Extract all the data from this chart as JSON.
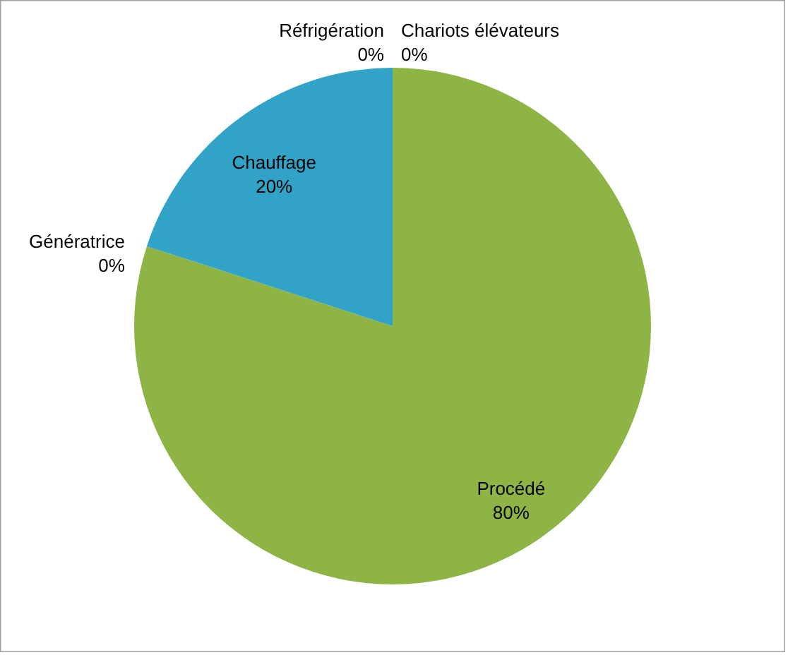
{
  "chart_data": {
    "type": "pie",
    "categories": [
      "Chariots élévateurs",
      "Procédé",
      "Génératrice",
      "Chauffage",
      "Réfrigération"
    ],
    "values": [
      0,
      80,
      0,
      20,
      0
    ],
    "colors": [
      "#e46c0a",
      "#8fb446",
      "#7f64a2",
      "#31a3c6",
      "#c0504d"
    ],
    "value_labels": [
      "0%",
      "80%",
      "0%",
      "20%",
      "0%"
    ]
  }
}
